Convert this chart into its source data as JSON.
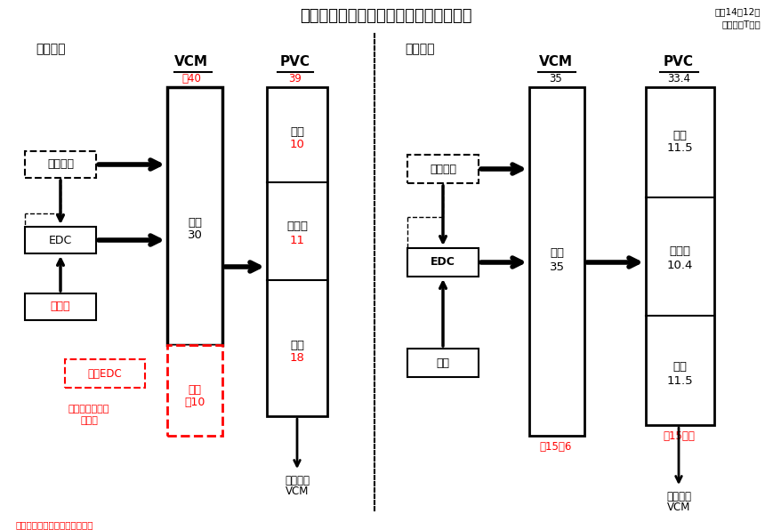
{
  "title": "ヴイテック塗ビ事業コスト競争力強化策",
  "top_right_1": "平成14年12月",
  "top_right_2": "能力：万T／年",
  "left_label": "＜現状＞",
  "right_label": "＜今後＞",
  "vcm_label": "VCM",
  "pvc_label": "PVC",
  "left_vcm_value": "絀40",
  "left_pvc_value": "39",
  "right_vcm_value": "35",
  "right_pvc_value": "33.4",
  "ethylene": "エチレン",
  "edc": "EDC",
  "denkai_left": "電　解",
  "yunyuu_edc": "輸入EDC",
  "central": "セントラル化学",
  "kounyu": "購入分",
  "mizushima_30": "水島",
  "v30": "30",
  "kawasaki_10": "川崎",
  "v10": "絀10",
  "pvc_mizushima": "水島",
  "pvc_v10": "10",
  "pvc_yokkaichi": "四日市",
  "pvc_v11": "11",
  "pvc_kawasaki": "川崎",
  "pvc_v18": "18",
  "asahi_vcm_left": "旭化成向",
  "asahi_vcm_label": "VCM",
  "ethylene_r": "エチレン",
  "edc_r": "EDC",
  "denkai_r": "電解",
  "mizushima_r": "水島",
  "v35": "35",
  "rpvc_mizushima": "水島",
  "rpvc_v115a": "11.5",
  "rpvc_yokkaichi": "四日市",
  "rpvc_v104": "10.4",
  "rpvc_kawasaki": "川崎",
  "rpvc_v115b": "11.5",
  "hei15_6": "平15／6",
  "hei15_haya": "平15早々",
  "asahi_vcm_right": "旭化成向",
  "asahi_vcm_right2": "VCM",
  "footnote": "赤字はコスト競争力強化策対象",
  "bg_color": "#ffffff"
}
